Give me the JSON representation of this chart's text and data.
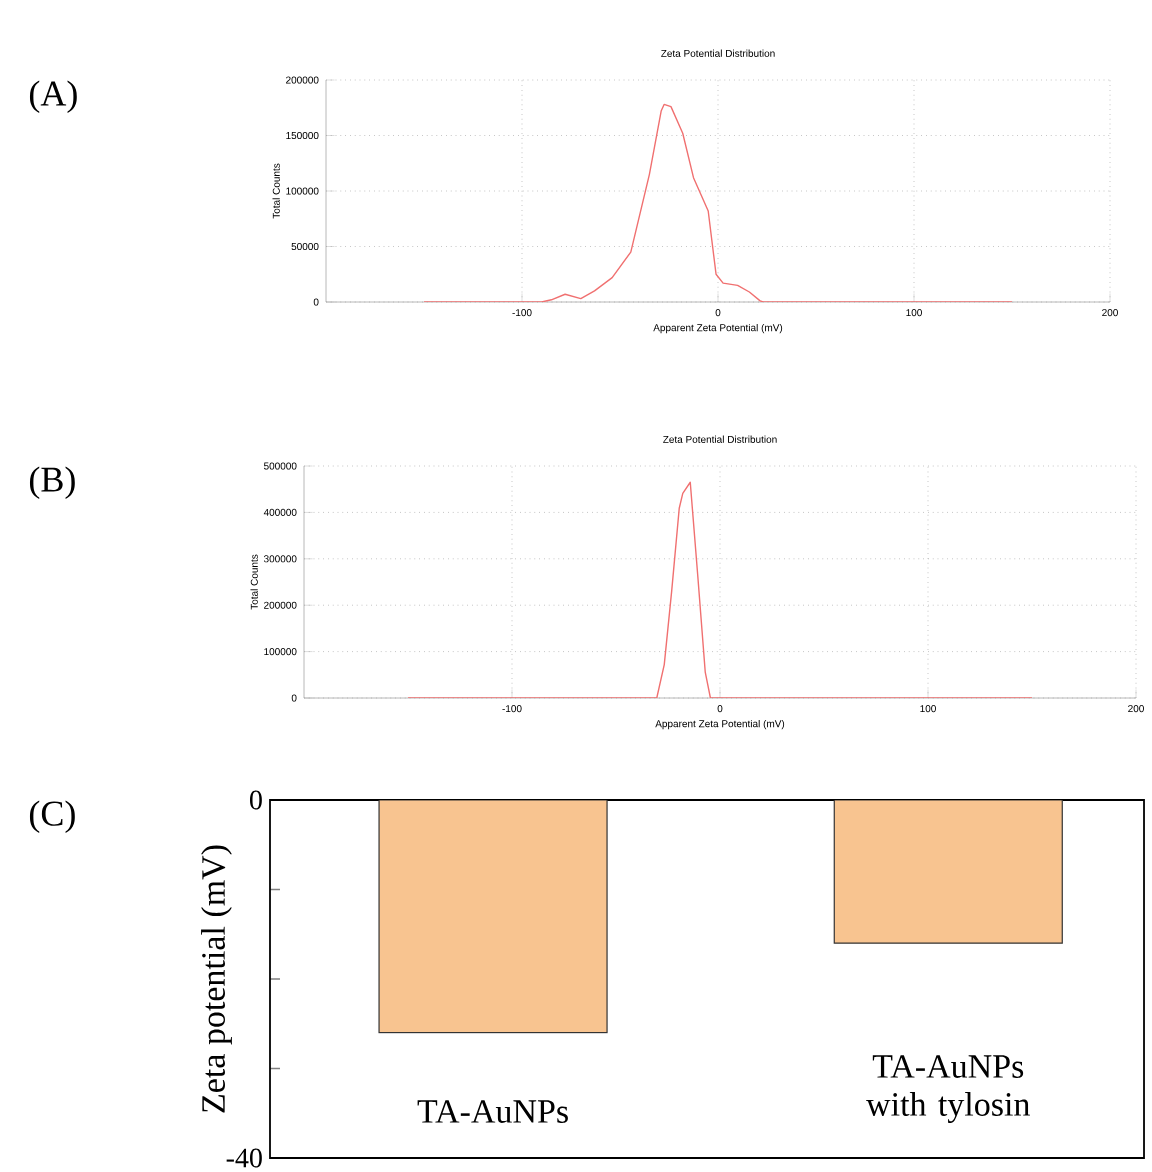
{
  "chart_data": [
    {
      "type": "line",
      "title": "Zeta Potential Distribution",
      "xlabel": "Apparent Zeta Potential (mV)",
      "ylabel": "Total Counts",
      "annotations": [
        "(A)"
      ],
      "xlim": [
        -200,
        200
      ],
      "xticks": [
        -100,
        0,
        100,
        200
      ],
      "ylim": [
        0,
        200000
      ],
      "yticks": [
        0,
        50000,
        100000,
        150000,
        200000
      ],
      "grid": true,
      "series": [
        {
          "color": "#f07070",
          "x": [
            -150,
            -90,
            -85,
            -78,
            -70,
            -63,
            -54,
            -44.5,
            -35,
            -29,
            -27.5,
            -24,
            -18,
            -12.5,
            -5,
            -1,
            2.6,
            10,
            16,
            21.5,
            23,
            150
          ],
          "values": [
            0,
            0,
            2000,
            7000,
            3000,
            10000,
            22000,
            45000,
            115000,
            172000,
            178000,
            176000,
            152000,
            112000,
            82000,
            25000,
            17000,
            15000,
            9000,
            1000,
            0,
            0
          ]
        }
      ]
    },
    {
      "type": "line",
      "title": "Zeta Potential Distribution",
      "xlabel": "Apparent Zeta Potential (mV)",
      "ylabel": "Total Counts",
      "annotations": [
        "(B)"
      ],
      "xlim": [
        -200,
        200
      ],
      "xticks": [
        -100,
        0,
        100,
        200
      ],
      "ylim": [
        0,
        500000
      ],
      "yticks": [
        0,
        100000,
        200000,
        300000,
        400000,
        500000
      ],
      "grid": true,
      "series": [
        {
          "color": "#f07070",
          "x": [
            -150,
            -30.4,
            -26.8,
            -23.2,
            -19.6,
            -17.9,
            -14.3,
            -10.7,
            -7.1,
            -4.6,
            150
          ],
          "values": [
            0,
            0,
            72000,
            232000,
            409000,
            441000,
            465000,
            264000,
            56000,
            0,
            0
          ]
        }
      ]
    },
    {
      "type": "bar",
      "ylabel": "Zeta potential (mV)",
      "annotations": [
        "(C)"
      ],
      "categories": [
        "TA-AuNPs",
        "TA-AuNPs with tylosin"
      ],
      "values": [
        -26,
        -16
      ],
      "color": "#f8c490",
      "ylim": [
        -40,
        0
      ],
      "yticks": [
        {
          "value": -40,
          "label": "-40"
        },
        {
          "value": -30,
          "label": null
        },
        {
          "value": -20,
          "label": null
        },
        {
          "value": -10,
          "label": null
        },
        0
      ]
    }
  ]
}
